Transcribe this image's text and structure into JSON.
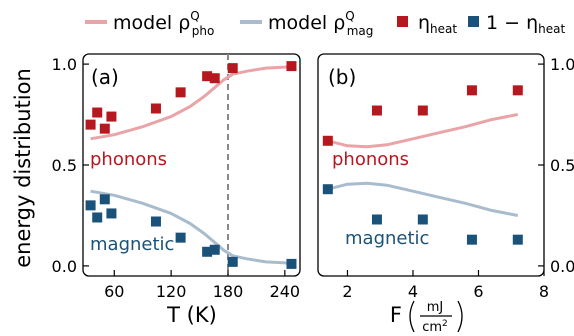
{
  "colors": {
    "pho_line": "#e8a4a6",
    "mag_line": "#a8bccd",
    "eta_marker": "#b5191f",
    "one_minus_marker": "#1b5279",
    "axis": "#000000",
    "vline": "#888888",
    "label_pho": "#b5191f",
    "label_mag": "#1b5279"
  },
  "legend": {
    "model_pho_text": "model ρ",
    "model_pho_sup": "Q",
    "model_pho_sub": "pho",
    "model_mag_text": "model ρ",
    "model_mag_sup": "Q",
    "model_mag_sub": "mag",
    "eta_text": "η",
    "eta_sub": "heat",
    "one_minus_text": "1 − η",
    "one_minus_sub": "heat"
  },
  "chart_data": [
    {
      "type": "scatter",
      "panel_label": "(a)",
      "ylabel": "energy distribution",
      "xlabel": "T (K)",
      "xlim": [
        27,
        256
      ],
      "ylim": [
        -0.05,
        1.05
      ],
      "xticks": [
        60,
        120,
        180,
        240
      ],
      "xtick_labels": [
        "60",
        "120",
        "180",
        "240"
      ],
      "yticks": [
        0.0,
        0.5,
        1.0
      ],
      "ytick_labels": [
        "0.0",
        "0.5",
        "1.0"
      ],
      "vline_x": 180,
      "text_labels": [
        {
          "text": "phonons",
          "kind": "pho"
        },
        {
          "text": "magnetic",
          "kind": "mag"
        }
      ],
      "series": [
        {
          "name": "model ρ_pho^Q",
          "kind": "line_pho",
          "x": [
            35,
            60,
            90,
            120,
            140,
            155,
            165,
            175,
            185,
            200,
            220,
            240,
            250
          ],
          "y": [
            0.63,
            0.65,
            0.69,
            0.74,
            0.79,
            0.84,
            0.88,
            0.92,
            0.95,
            0.965,
            0.98,
            0.985,
            0.99
          ]
        },
        {
          "name": "model ρ_mag^Q",
          "kind": "line_mag",
          "x": [
            35,
            60,
            90,
            120,
            140,
            155,
            165,
            175,
            185,
            200,
            220,
            240,
            250
          ],
          "y": [
            0.37,
            0.35,
            0.31,
            0.26,
            0.21,
            0.16,
            0.12,
            0.08,
            0.05,
            0.035,
            0.02,
            0.015,
            0.01
          ]
        },
        {
          "name": "η_heat",
          "kind": "marker_eta",
          "x": [
            35,
            42,
            50,
            57,
            104,
            130,
            158,
            166,
            185,
            247
          ],
          "y": [
            0.7,
            0.76,
            0.68,
            0.74,
            0.78,
            0.86,
            0.94,
            0.93,
            0.98,
            0.99
          ]
        },
        {
          "name": "1 − η_heat",
          "kind": "marker_one",
          "x": [
            35,
            42,
            50,
            57,
            104,
            130,
            158,
            166,
            185,
            247
          ],
          "y": [
            0.3,
            0.24,
            0.33,
            0.26,
            0.22,
            0.14,
            0.07,
            0.08,
            0.02,
            0.01
          ]
        }
      ]
    },
    {
      "type": "scatter",
      "panel_label": "(b)",
      "xlabel": "F",
      "xlabel_unit_num": "mJ",
      "xlabel_unit_den": "cm",
      "xlabel_unit_den_sup": "2",
      "xlim": [
        1.1,
        8.0
      ],
      "ylim": [
        -0.05,
        1.05
      ],
      "xticks": [
        2,
        4,
        6,
        8
      ],
      "xtick_labels": [
        "2",
        "4",
        "6",
        "8"
      ],
      "yticks": [
        0.0,
        0.5,
        1.0
      ],
      "ytick_labels": [
        "0.0",
        "0.5",
        "1.0"
      ],
      "text_labels": [
        {
          "text": "phonons",
          "kind": "pho"
        },
        {
          "text": "magnetic",
          "kind": "mag"
        }
      ],
      "series": [
        {
          "name": "model ρ_pho^Q",
          "kind": "line_pho",
          "x": [
            1.4,
            2.0,
            2.6,
            3.2,
            4.0,
            4.8,
            5.6,
            6.4,
            7.2
          ],
          "y": [
            0.62,
            0.595,
            0.59,
            0.6,
            0.63,
            0.66,
            0.69,
            0.725,
            0.75
          ]
        },
        {
          "name": "model ρ_mag^Q",
          "kind": "line_mag",
          "x": [
            1.4,
            2.0,
            2.6,
            3.2,
            4.0,
            4.8,
            5.6,
            6.4,
            7.2
          ],
          "y": [
            0.38,
            0.405,
            0.41,
            0.4,
            0.37,
            0.34,
            0.31,
            0.275,
            0.25
          ]
        },
        {
          "name": "η_heat",
          "kind": "marker_eta",
          "x": [
            1.4,
            2.9,
            4.3,
            5.8,
            7.2
          ],
          "y": [
            0.62,
            0.77,
            0.77,
            0.87,
            0.87
          ]
        },
        {
          "name": "1 − η_heat",
          "kind": "marker_one",
          "x": [
            1.4,
            2.9,
            4.3,
            5.8,
            7.2
          ],
          "y": [
            0.38,
            0.23,
            0.23,
            0.13,
            0.13
          ]
        }
      ]
    }
  ]
}
